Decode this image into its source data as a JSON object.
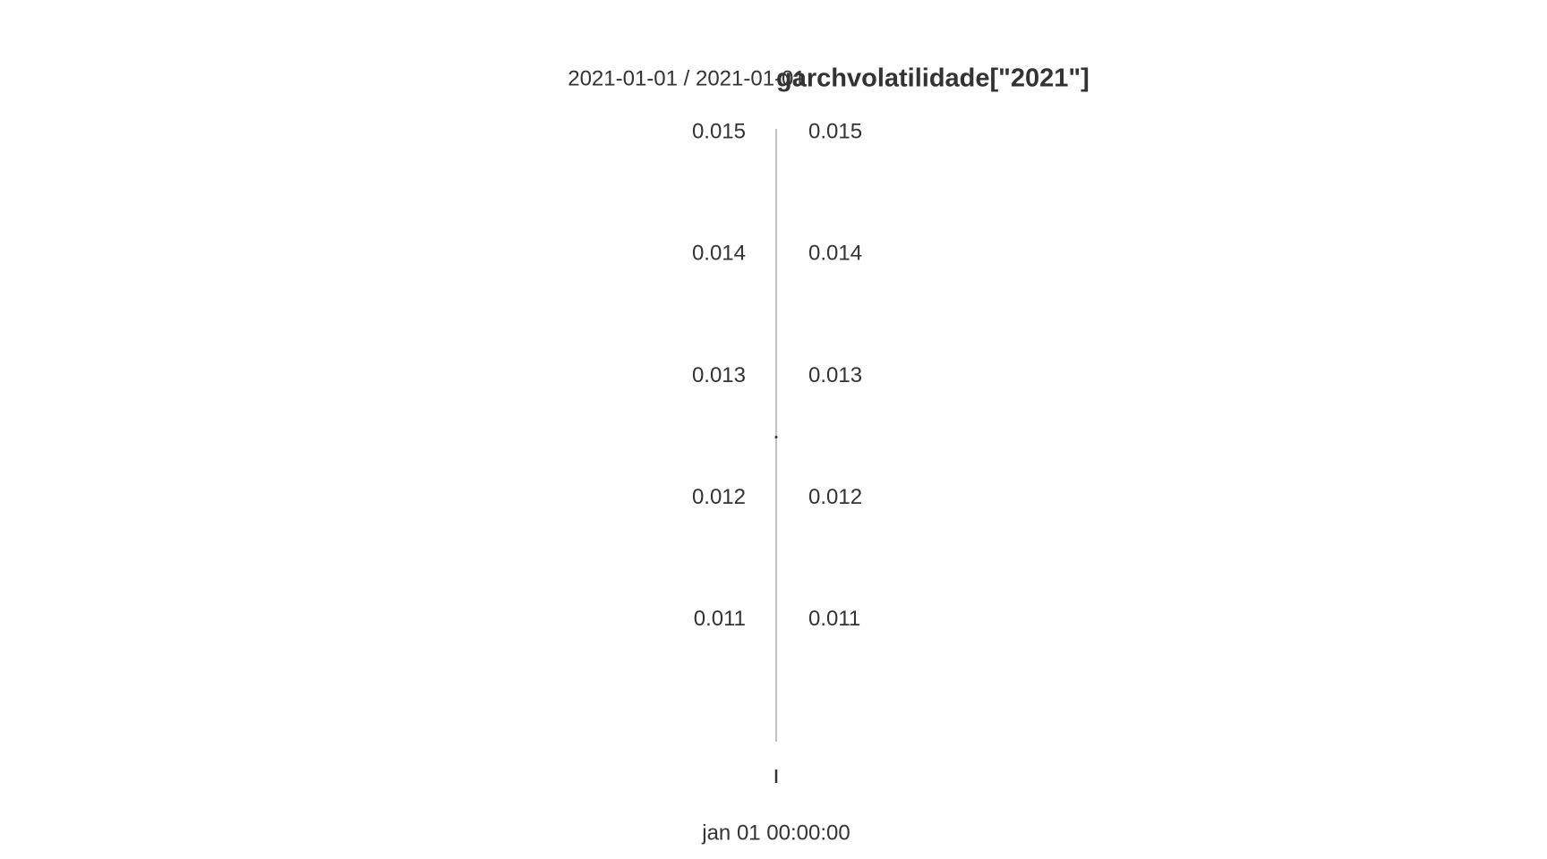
{
  "chart_data": {
    "type": "line",
    "title": "garchvolatilidade[\"2021\"]",
    "subtitle": "2021-01-01 / 2021-01-01",
    "categories": [
      "jan 01 00:00:00"
    ],
    "series": [
      {
        "name": "garchvolatilidade",
        "color": "#333333",
        "values": [
          0.0125
        ]
      }
    ],
    "ylim": [
      0.01,
      0.01503
    ],
    "yticks": [
      0.011,
      0.012,
      0.013,
      0.014,
      0.015
    ],
    "grid": true
  }
}
